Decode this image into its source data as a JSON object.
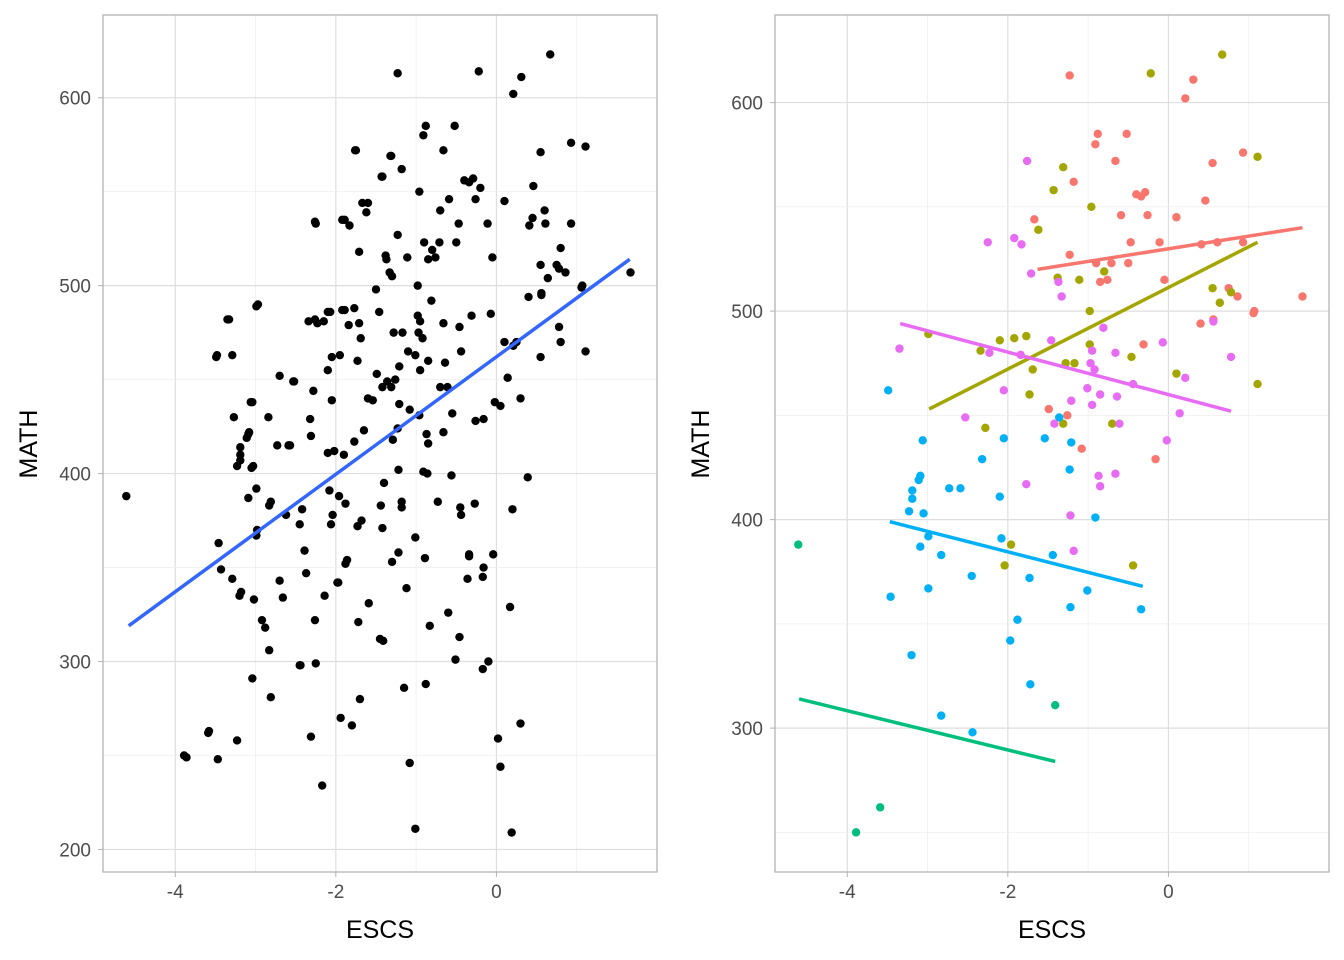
{
  "chart_data": [
    {
      "type": "scatter",
      "xlabel": "ESCS",
      "ylabel": "MATH",
      "xlim": [
        -4.9,
        2.0
      ],
      "ylim": [
        188,
        644
      ],
      "xticks": [
        -4,
        -2,
        0
      ],
      "yticks": [
        200,
        300,
        400,
        500,
        600
      ],
      "grid": true,
      "point_color": "#000000",
      "fit_line": {
        "color": "#3366FF",
        "x": [
          -4.58,
          1.66
        ],
        "y": [
          319,
          514
        ]
      },
      "extra_points": [
        [
          -3.86,
          249
        ],
        [
          -3.58,
          263
        ],
        [
          -3.47,
          248
        ],
        [
          -3.23,
          258
        ],
        [
          -2.17,
          234
        ],
        [
          -1.08,
          246
        ],
        [
          -1.01,
          211
        ],
        [
          0.19,
          209
        ],
        [
          0.02,
          259
        ],
        [
          0.05,
          244
        ],
        [
          0.3,
          267
        ],
        [
          0.17,
          329
        ],
        [
          -3.04,
          291
        ],
        [
          -2.81,
          281
        ],
        [
          -2.45,
          298
        ],
        [
          -2.25,
          299
        ],
        [
          -1.8,
          266
        ],
        [
          -2.31,
          260
        ],
        [
          -1.94,
          270
        ],
        [
          -1.7,
          280
        ],
        [
          -1.15,
          286
        ],
        [
          -0.88,
          288
        ],
        [
          -0.51,
          301
        ],
        [
          -0.1,
          300
        ],
        [
          -0.17,
          296
        ],
        [
          -0.46,
          313
        ],
        [
          -0.83,
          319
        ],
        [
          -1.45,
          312
        ],
        [
          -2.88,
          318
        ],
        [
          -2.92,
          322
        ],
        [
          -3.29,
          344
        ],
        [
          -3.43,
          349
        ],
        [
          -3.02,
          333
        ],
        [
          -3.18,
          337
        ],
        [
          -2.98,
          370
        ],
        [
          -2.62,
          378
        ],
        [
          -2.7,
          343
        ],
        [
          -2.66,
          334
        ],
        [
          -2.39,
          359
        ],
        [
          -2.37,
          347
        ],
        [
          -2.14,
          335
        ],
        [
          -2.26,
          322
        ],
        [
          -1.98,
          342
        ],
        [
          -1.86,
          354
        ],
        [
          -1.59,
          331
        ],
        [
          -1.3,
          353
        ],
        [
          -1.12,
          339
        ],
        [
          -0.89,
          355
        ],
        [
          -0.34,
          356
        ],
        [
          -0.04,
          357
        ],
        [
          -0.16,
          350
        ],
        [
          -0.36,
          344
        ],
        [
          -0.17,
          345
        ],
        [
          -0.6,
          326
        ],
        [
          -1.42,
          371
        ],
        [
          -1.68,
          375
        ],
        [
          -1.18,
          382
        ],
        [
          -0.73,
          385
        ],
        [
          -0.45,
          382
        ],
        [
          -0.27,
          384
        ],
        [
          0.2,
          381
        ],
        [
          0.39,
          398
        ],
        [
          -0.86,
          400
        ],
        [
          -0.56,
          399
        ],
        [
          -2.42,
          381
        ],
        [
          -2.06,
          373
        ],
        [
          -1.88,
          384
        ],
        [
          -2.81,
          385
        ],
        [
          -3.03,
          404
        ],
        [
          -3.19,
          407
        ],
        [
          -3.08,
          422
        ],
        [
          -3.27,
          430
        ],
        [
          -2.84,
          430
        ],
        [
          -2.57,
          415
        ],
        [
          -2.31,
          420
        ],
        [
          -2.02,
          412
        ],
        [
          -1.65,
          423
        ],
        [
          -1.29,
          418
        ],
        [
          -0.96,
          431
        ],
        [
          -0.55,
          432
        ],
        [
          -0.26,
          428
        ],
        [
          -3.04,
          438
        ],
        [
          -2.7,
          452
        ],
        [
          -2.52,
          449
        ],
        [
          -3.48,
          463
        ],
        [
          -3.29,
          463
        ],
        [
          -3.33,
          482
        ],
        [
          -2.97,
          490
        ],
        [
          -2.26,
          482
        ],
        [
          -2.15,
          481
        ],
        [
          -2.07,
          486
        ],
        [
          -1.89,
          487
        ],
        [
          -1.71,
          480
        ],
        [
          -2.26,
          534
        ],
        [
          -1.89,
          535
        ],
        [
          -1.6,
          544
        ],
        [
          -1.75,
          572
        ],
        [
          -1.42,
          558
        ],
        [
          -1.32,
          569
        ],
        [
          0.45,
          536
        ],
        [
          0.6,
          540
        ],
        [
          0.8,
          520
        ],
        [
          -0.2,
          552
        ],
        [
          -0.7,
          540
        ],
        [
          0.25,
          470
        ],
        [
          0.55,
          462
        ],
        [
          0.8,
          470
        ],
        [
          0.3,
          440
        ],
        [
          0.05,
          436
        ],
        [
          -1.6,
          440
        ],
        [
          -1.9,
          410
        ],
        [
          -1.4,
          395
        ],
        [
          -1.1,
          465
        ],
        [
          -1.3,
          505
        ],
        [
          -1.5,
          498
        ],
        [
          -2.1,
          455
        ],
        [
          -1.95,
          463
        ]
      ]
    },
    {
      "type": "scatter",
      "xlabel": "ESCS",
      "ylabel": "MATH",
      "xlim": [
        -4.9,
        2.0
      ],
      "ylim": [
        231,
        642
      ],
      "xticks": [
        -4,
        -2,
        0
      ],
      "yticks": [
        300,
        400,
        500,
        600
      ],
      "grid": true,
      "series": [
        {
          "color": "#F8766D",
          "line": {
            "x": [
              -1.63,
              1.67
            ],
            "y": [
              520,
              540
            ]
          },
          "points": [
            [
              -1.23,
              613
            ],
            [
              0.31,
              611
            ],
            [
              0.21,
              602
            ],
            [
              -0.88,
              585
            ],
            [
              -0.52,
              585
            ],
            [
              -0.91,
              580
            ],
            [
              -0.66,
              572
            ],
            [
              -1.18,
              562
            ],
            [
              -0.29,
              557
            ],
            [
              -0.4,
              556
            ],
            [
              -0.34,
              555
            ],
            [
              0.55,
              571
            ],
            [
              0.93,
              576
            ],
            [
              -1.67,
              544
            ],
            [
              -0.59,
              546
            ],
            [
              -0.26,
              546
            ],
            [
              0.1,
              545
            ],
            [
              0.46,
              553
            ],
            [
              0.41,
              532
            ],
            [
              0.61,
              533
            ],
            [
              0.93,
              533
            ],
            [
              -1.23,
              527
            ],
            [
              -0.47,
              533
            ],
            [
              -0.11,
              533
            ],
            [
              -0.71,
              523
            ],
            [
              -0.9,
              523
            ],
            [
              -0.76,
              515
            ],
            [
              -0.05,
              515
            ],
            [
              0.4,
              494
            ],
            [
              1.07,
              500
            ],
            [
              1.06,
              499
            ],
            [
              0.86,
              507
            ],
            [
              0.56,
              496
            ],
            [
              -0.31,
              484
            ],
            [
              -1.49,
              453
            ],
            [
              -1.08,
              434
            ],
            [
              -0.16,
              429
            ],
            [
              -0.85,
              514
            ],
            [
              -0.5,
              523
            ],
            [
              1.67,
              507
            ],
            [
              -1.26,
              450
            ],
            [
              0.75,
              511
            ]
          ]
        },
        {
          "color": "#A3A500",
          "line": {
            "x": [
              -2.98,
              1.11
            ],
            "y": [
              453,
              533
            ]
          },
          "points": [
            [
              -0.22,
              614
            ],
            [
              0.67,
              623
            ],
            [
              1.11,
              574
            ],
            [
              -1.31,
              569
            ],
            [
              -1.43,
              558
            ],
            [
              -0.96,
              550
            ],
            [
              -1.62,
              539
            ],
            [
              -1.11,
              515
            ],
            [
              -0.8,
              519
            ],
            [
              -1.38,
              516
            ],
            [
              0.55,
              511
            ],
            [
              0.78,
              509
            ],
            [
              0.64,
              504
            ],
            [
              -0.98,
              500
            ],
            [
              -1.77,
              488
            ],
            [
              -1.92,
              487
            ],
            [
              -2.1,
              486
            ],
            [
              -2.34,
              481
            ],
            [
              -2.99,
              489
            ],
            [
              -0.98,
              484
            ],
            [
              -0.46,
              478
            ],
            [
              -1.28,
              475
            ],
            [
              -1.17,
              475
            ],
            [
              -1.69,
              472
            ],
            [
              -1.73,
              460
            ],
            [
              1.11,
              465
            ],
            [
              0.1,
              470
            ],
            [
              -1.31,
              446
            ],
            [
              -0.7,
              446
            ],
            [
              -2.28,
              444
            ],
            [
              -1.96,
              388
            ],
            [
              -2.04,
              378
            ],
            [
              -0.44,
              378
            ]
          ]
        },
        {
          "color": "#00BF7D",
          "line": {
            "x": [
              -4.6,
              -1.41
            ],
            "y": [
              314,
              284
            ]
          },
          "points": [
            [
              -4.61,
              388
            ],
            [
              -3.59,
              262
            ],
            [
              -3.89,
              250
            ],
            [
              -1.41,
              311
            ]
          ]
        },
        {
          "color": "#00B0F6",
          "line": {
            "x": [
              -3.47,
              -0.32
            ],
            "y": [
              399,
              368
            ]
          },
          "points": [
            [
              -3.49,
              462
            ],
            [
              -3.06,
              438
            ],
            [
              -3.09,
              421
            ],
            [
              -3.11,
              419
            ],
            [
              -3.19,
              414
            ],
            [
              -3.19,
              410
            ],
            [
              -3.23,
              404
            ],
            [
              -3.05,
              403
            ],
            [
              -2.99,
              392
            ],
            [
              -3.09,
              387
            ],
            [
              -2.83,
              383
            ],
            [
              -2.73,
              415
            ],
            [
              -2.59,
              415
            ],
            [
              -2.99,
              367
            ],
            [
              -3.46,
              363
            ],
            [
              -3.2,
              335
            ],
            [
              -2.83,
              306
            ],
            [
              -2.44,
              298
            ],
            [
              -2.45,
              373
            ],
            [
              -2.32,
              429
            ],
            [
              -2.05,
              439
            ],
            [
              -2.1,
              411
            ],
            [
              -2.08,
              391
            ],
            [
              -1.88,
              352
            ],
            [
              -1.97,
              342
            ],
            [
              -1.72,
              321
            ],
            [
              -1.73,
              372
            ],
            [
              -1.54,
              439
            ],
            [
              -1.44,
              383
            ],
            [
              -1.23,
              424
            ],
            [
              -1.22,
              358
            ],
            [
              -1.01,
              366
            ],
            [
              -0.91,
              401
            ],
            [
              -0.34,
              357
            ],
            [
              -1.21,
              437
            ],
            [
              -1.36,
              449
            ]
          ]
        },
        {
          "color": "#E76BF3",
          "line": {
            "x": [
              -3.34,
              0.78
            ],
            "y": [
              494,
              452
            ]
          },
          "points": [
            [
              -3.35,
              482
            ],
            [
              -2.25,
              533
            ],
            [
              -1.92,
              535
            ],
            [
              -1.83,
              532
            ],
            [
              -1.76,
              572
            ],
            [
              -1.71,
              518
            ],
            [
              -1.37,
              514
            ],
            [
              -1.33,
              507
            ],
            [
              -1.46,
              486
            ],
            [
              -0.95,
              481
            ],
            [
              -0.66,
              480
            ],
            [
              -0.44,
              465
            ],
            [
              -0.07,
              485
            ],
            [
              0.21,
              468
            ],
            [
              0.14,
              451
            ],
            [
              -0.02,
              438
            ],
            [
              0.78,
              478
            ],
            [
              0.56,
              495
            ],
            [
              -0.81,
              492
            ],
            [
              -2.23,
              480
            ],
            [
              -1.84,
              479
            ],
            [
              -2.05,
              462
            ],
            [
              -2.53,
              449
            ],
            [
              -1.42,
              446
            ],
            [
              -1.21,
              457
            ],
            [
              -0.97,
              475
            ],
            [
              -0.64,
              459
            ],
            [
              -0.85,
              460
            ],
            [
              -1.01,
              463
            ],
            [
              -0.87,
              421
            ],
            [
              -0.85,
              416
            ],
            [
              -0.66,
              422
            ],
            [
              -0.61,
              446
            ],
            [
              -1.77,
              417
            ],
            [
              -1.22,
              402
            ],
            [
              -1.18,
              385
            ],
            [
              -0.95,
              455
            ],
            [
              -0.92,
              472
            ]
          ]
        }
      ]
    }
  ]
}
